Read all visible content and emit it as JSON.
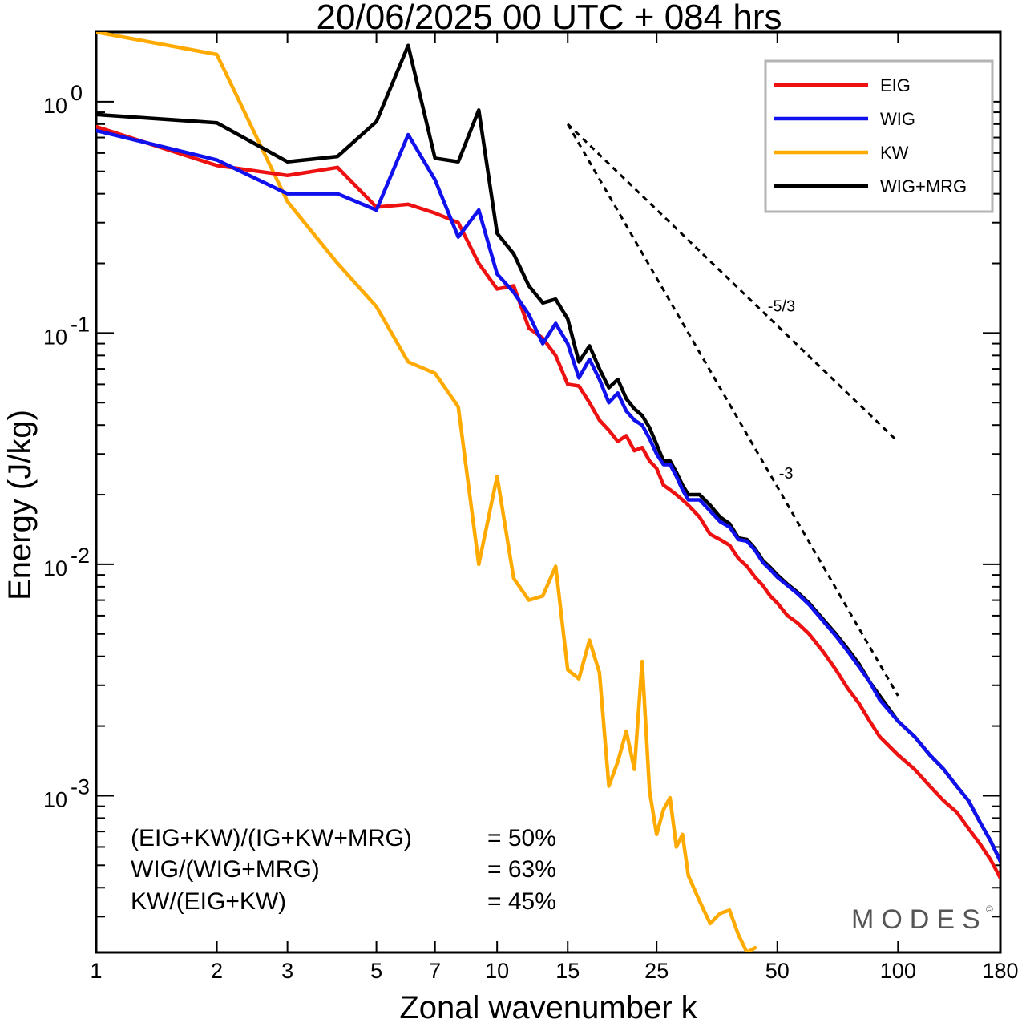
{
  "chart_data": {
    "type": "line",
    "title": "20/06/2025  00 UTC  + 084 hrs",
    "xlabel": "Zonal wavenumber k",
    "ylabel": "Energy (J/kg)",
    "xscale": "log",
    "yscale": "log",
    "xlim": [
      1,
      180
    ],
    "ylim": [
      0.00021,
      2.0
    ],
    "x_ticks": [
      1,
      2,
      3,
      5,
      7,
      10,
      15,
      25,
      50,
      100,
      180
    ],
    "y_ticks": [
      {
        "value": 0.001,
        "base": "10",
        "exp": "-3"
      },
      {
        "value": 0.01,
        "base": "10",
        "exp": "-2"
      },
      {
        "value": 0.1,
        "base": "10",
        "exp": "-1"
      },
      {
        "value": 1,
        "base": "10",
        "exp": "0"
      }
    ],
    "legend_position": "top-right",
    "series": [
      {
        "name": "EIG",
        "color": "#ee1111",
        "points": [
          [
            1,
            0.78
          ],
          [
            2,
            0.53
          ],
          [
            3,
            0.48
          ],
          [
            4,
            0.52
          ],
          [
            5,
            0.35
          ],
          [
            6,
            0.36
          ],
          [
            7,
            0.33
          ],
          [
            8,
            0.3
          ],
          [
            9,
            0.2
          ],
          [
            10,
            0.155
          ],
          [
            11,
            0.16
          ],
          [
            12,
            0.105
          ],
          [
            13,
            0.095
          ],
          [
            14,
            0.08
          ],
          [
            15,
            0.06
          ],
          [
            16,
            0.059
          ],
          [
            17,
            0.05
          ],
          [
            18,
            0.042
          ],
          [
            19,
            0.038
          ],
          [
            20,
            0.034
          ],
          [
            21,
            0.036
          ],
          [
            22,
            0.031
          ],
          [
            23,
            0.032
          ],
          [
            24,
            0.028
          ],
          [
            25,
            0.026
          ],
          [
            26,
            0.022
          ],
          [
            27,
            0.021
          ],
          [
            28,
            0.02
          ],
          [
            29,
            0.019
          ],
          [
            30,
            0.018
          ],
          [
            32,
            0.016
          ],
          [
            34,
            0.0135
          ],
          [
            36,
            0.0128
          ],
          [
            38,
            0.0121
          ],
          [
            40,
            0.0106
          ],
          [
            42,
            0.0098
          ],
          [
            44,
            0.0088
          ],
          [
            46,
            0.0081
          ],
          [
            48,
            0.0073
          ],
          [
            50,
            0.0068
          ],
          [
            53,
            0.006
          ],
          [
            56,
            0.0056
          ],
          [
            60,
            0.005
          ],
          [
            65,
            0.0042
          ],
          [
            70,
            0.0035
          ],
          [
            75,
            0.0029
          ],
          [
            80,
            0.0025
          ],
          [
            85,
            0.0021
          ],
          [
            90,
            0.0018
          ],
          [
            100,
            0.0015
          ],
          [
            110,
            0.0013
          ],
          [
            120,
            0.0011
          ],
          [
            130,
            0.00095
          ],
          [
            140,
            0.00085
          ],
          [
            150,
            0.00072
          ],
          [
            160,
            0.00062
          ],
          [
            170,
            0.00053
          ],
          [
            180,
            0.00044
          ]
        ]
      },
      {
        "name": "WIG",
        "color": "#1111ee",
        "points": [
          [
            1,
            0.75
          ],
          [
            2,
            0.56
          ],
          [
            3,
            0.4
          ],
          [
            4,
            0.4
          ],
          [
            5,
            0.34
          ],
          [
            6,
            0.72
          ],
          [
            7,
            0.46
          ],
          [
            8,
            0.26
          ],
          [
            9,
            0.34
          ],
          [
            10,
            0.18
          ],
          [
            11,
            0.15
          ],
          [
            12,
            0.12
          ],
          [
            13,
            0.09
          ],
          [
            14,
            0.11
          ],
          [
            15,
            0.09
          ],
          [
            16,
            0.064
          ],
          [
            17,
            0.077
          ],
          [
            18,
            0.063
          ],
          [
            19,
            0.05
          ],
          [
            20,
            0.055
          ],
          [
            21,
            0.046
          ],
          [
            22,
            0.042
          ],
          [
            23,
            0.04
          ],
          [
            24,
            0.035
          ],
          [
            25,
            0.03
          ],
          [
            26,
            0.027
          ],
          [
            27,
            0.027
          ],
          [
            28,
            0.024
          ],
          [
            29,
            0.021
          ],
          [
            30,
            0.019
          ],
          [
            32,
            0.019
          ],
          [
            34,
            0.017
          ],
          [
            36,
            0.0153
          ],
          [
            38,
            0.0145
          ],
          [
            40,
            0.0128
          ],
          [
            42,
            0.0126
          ],
          [
            44,
            0.0115
          ],
          [
            46,
            0.0102
          ],
          [
            48,
            0.0095
          ],
          [
            50,
            0.0088
          ],
          [
            53,
            0.0081
          ],
          [
            56,
            0.0075
          ],
          [
            60,
            0.0067
          ],
          [
            65,
            0.0057
          ],
          [
            70,
            0.0049
          ],
          [
            75,
            0.0042
          ],
          [
            80,
            0.0036
          ],
          [
            85,
            0.0031
          ],
          [
            90,
            0.0026
          ],
          [
            100,
            0.0021
          ],
          [
            110,
            0.0018
          ],
          [
            120,
            0.0015
          ],
          [
            130,
            0.0013
          ],
          [
            140,
            0.0011
          ],
          [
            150,
            0.00095
          ],
          [
            160,
            0.00077
          ],
          [
            170,
            0.00064
          ],
          [
            180,
            0.00052
          ]
        ]
      },
      {
        "name": "KW",
        "color": "#ffaa00",
        "points": [
          [
            1,
            2.0
          ],
          [
            2,
            1.6
          ],
          [
            3,
            0.37
          ],
          [
            4,
            0.2
          ],
          [
            5,
            0.13
          ],
          [
            6,
            0.075
          ],
          [
            7,
            0.067
          ],
          [
            8,
            0.048
          ],
          [
            9,
            0.01
          ],
          [
            10,
            0.024
          ],
          [
            11,
            0.0087
          ],
          [
            12,
            0.007
          ],
          [
            13,
            0.0073
          ],
          [
            14,
            0.0098
          ],
          [
            15,
            0.0035
          ],
          [
            16,
            0.0032
          ],
          [
            17,
            0.0047
          ],
          [
            18,
            0.0034
          ],
          [
            19,
            0.0011
          ],
          [
            20,
            0.0014
          ],
          [
            21,
            0.0019
          ],
          [
            22,
            0.0013
          ],
          [
            23,
            0.0038
          ],
          [
            24,
            0.00105
          ],
          [
            25,
            0.00068
          ],
          [
            26,
            0.00087
          ],
          [
            27,
            0.00098
          ],
          [
            28,
            0.0006
          ],
          [
            29,
            0.00068
          ],
          [
            30,
            0.00045
          ],
          [
            32,
            0.00035
          ],
          [
            34,
            0.00028
          ],
          [
            36,
            0.00031
          ],
          [
            38,
            0.00032
          ],
          [
            40,
            0.00025
          ],
          [
            42,
            0.00021
          ],
          [
            44,
            0.00022
          ]
        ]
      },
      {
        "name": "WIG+MRG",
        "color": "#000000",
        "points": [
          [
            1,
            0.88
          ],
          [
            2,
            0.81
          ],
          [
            3,
            0.55
          ],
          [
            4,
            0.58
          ],
          [
            5,
            0.82
          ],
          [
            6,
            1.75
          ],
          [
            7,
            0.57
          ],
          [
            8,
            0.55
          ],
          [
            9,
            0.92
          ],
          [
            10,
            0.27
          ],
          [
            11,
            0.22
          ],
          [
            12,
            0.16
          ],
          [
            13,
            0.135
          ],
          [
            14,
            0.14
          ],
          [
            15,
            0.115
          ],
          [
            16,
            0.075
          ],
          [
            17,
            0.088
          ],
          [
            18,
            0.07
          ],
          [
            19,
            0.058
          ],
          [
            20,
            0.063
          ],
          [
            21,
            0.052
          ],
          [
            22,
            0.047
          ],
          [
            23,
            0.044
          ],
          [
            24,
            0.039
          ],
          [
            25,
            0.033
          ],
          [
            26,
            0.028
          ],
          [
            27,
            0.028
          ],
          [
            28,
            0.025
          ],
          [
            29,
            0.022
          ],
          [
            30,
            0.02
          ],
          [
            32,
            0.02
          ],
          [
            34,
            0.018
          ],
          [
            36,
            0.016
          ],
          [
            38,
            0.015
          ],
          [
            40,
            0.013
          ],
          [
            42,
            0.0128
          ],
          [
            44,
            0.0117
          ],
          [
            46,
            0.0104
          ],
          [
            48,
            0.0097
          ],
          [
            50,
            0.009
          ],
          [
            53,
            0.0082
          ],
          [
            56,
            0.0076
          ],
          [
            60,
            0.0068
          ],
          [
            65,
            0.0058
          ],
          [
            70,
            0.005
          ],
          [
            75,
            0.0043
          ],
          [
            80,
            0.0037
          ],
          [
            85,
            0.0031
          ],
          [
            90,
            0.0027
          ],
          [
            100,
            0.0021
          ],
          [
            110,
            0.0018
          ],
          [
            120,
            0.0015
          ],
          [
            130,
            0.0013
          ],
          [
            140,
            0.0011
          ],
          [
            150,
            0.00095
          ],
          [
            160,
            0.00077
          ],
          [
            170,
            0.00064
          ],
          [
            180,
            0.00052
          ]
        ]
      }
    ],
    "reference_slopes": [
      {
        "label": "-5/3",
        "slope": -1.6667,
        "x_start": 15,
        "y_start": 0.8,
        "x_end": 100
      },
      {
        "label": "-3",
        "slope": -3,
        "x_start": 15,
        "y_start": 0.8,
        "x_end": 100
      }
    ],
    "annotations": [
      {
        "text": "(EIG+KW)/(IG+KW+MRG)",
        "value": "= 50%"
      },
      {
        "text": "WIG/(WIG+MRG)",
        "value": "= 63%"
      },
      {
        "text": "KW/(EIG+KW)",
        "value": "= 45%"
      }
    ],
    "watermark": "MODES",
    "watermark_mark": "©"
  }
}
